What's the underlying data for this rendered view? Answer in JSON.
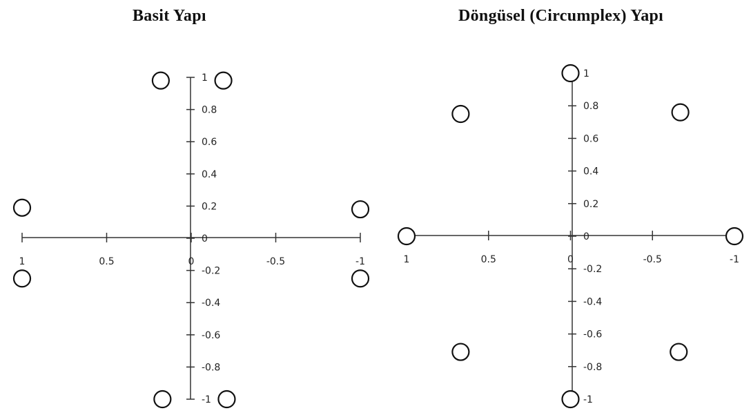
{
  "chart_data": [
    {
      "type": "scatter",
      "title": "Basit Yapı",
      "xlabel": "",
      "ylabel": "",
      "xlim": [
        1,
        -1
      ],
      "ylim": [
        -1,
        1
      ],
      "x_ticks": [
        1,
        0.5,
        0,
        -0.5,
        -1
      ],
      "y_ticks": [
        1,
        0.8,
        0.6,
        0.4,
        0.2,
        0,
        -0.2,
        -0.4,
        -0.6,
        -0.8,
        -1
      ],
      "x_tick_labels": [
        "1",
        "0.5",
        "0",
        "-0.5",
        "-1"
      ],
      "y_tick_labels": [
        "1",
        "0.8",
        "0.6",
        "0.4",
        "0.2",
        "0",
        "-0.2",
        "-0.4",
        "-0.6",
        "-0.8",
        "-1"
      ],
      "grid": false,
      "marker": "open-circle",
      "points": [
        {
          "x": 0.18,
          "y": 0.98
        },
        {
          "x": -0.19,
          "y": 0.98
        },
        {
          "x": 1.0,
          "y": 0.19
        },
        {
          "x": -1.0,
          "y": 0.18
        },
        {
          "x": 1.0,
          "y": -0.25
        },
        {
          "x": -1.0,
          "y": -0.25
        },
        {
          "x": 0.17,
          "y": -1.0
        },
        {
          "x": -0.21,
          "y": -1.0
        }
      ]
    },
    {
      "type": "scatter",
      "title": "Döngüsel (Circumplex) Yapı",
      "xlabel": "",
      "ylabel": "",
      "xlim": [
        1,
        -1
      ],
      "ylim": [
        -1,
        1
      ],
      "x_ticks": [
        1,
        0.5,
        0,
        -0.5,
        -1
      ],
      "y_ticks": [
        1,
        0.8,
        0.6,
        0.4,
        0.2,
        0,
        -0.2,
        -0.4,
        -0.6,
        -0.8,
        -1
      ],
      "x_tick_labels": [
        "1",
        "0.5",
        "0",
        "-0.5",
        "-1"
      ],
      "y_tick_labels": [
        "1",
        "0.8",
        "0.6",
        "0.4",
        "0.2",
        "0",
        "-0.2",
        "-0.4",
        "-0.6",
        "-0.8",
        "-1"
      ],
      "grid": false,
      "marker": "open-circle",
      "points": [
        {
          "x": 0.0,
          "y": 1.0
        },
        {
          "x": 0.67,
          "y": 0.75
        },
        {
          "x": -0.67,
          "y": 0.76
        },
        {
          "x": 1.0,
          "y": 0.0
        },
        {
          "x": -1.0,
          "y": 0.0
        },
        {
          "x": 0.67,
          "y": -0.71
        },
        {
          "x": -0.66,
          "y": -0.71
        },
        {
          "x": 0.0,
          "y": -1.0
        }
      ]
    }
  ]
}
